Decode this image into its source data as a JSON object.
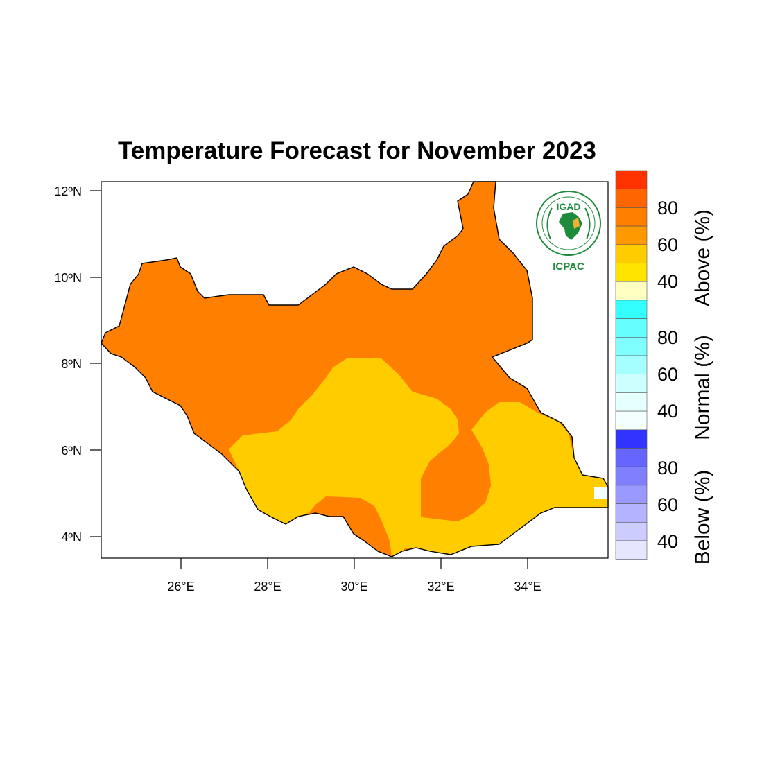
{
  "title": "Temperature Forecast for November 2023",
  "map": {
    "lat_ticks": [
      "12ºN",
      "10ºN",
      "8ºN",
      "6ºN",
      "4ºN"
    ],
    "lon_ticks": [
      "26°E",
      "28°E",
      "30°E",
      "32°E",
      "34°E"
    ],
    "zones": [
      {
        "category": "Above",
        "probability_band": "50-60",
        "color": "#FFCC00"
      },
      {
        "category": "Above",
        "probability_band": "60-70",
        "color": "#FF7F00"
      }
    ]
  },
  "legend": {
    "groups": [
      {
        "title": "Above (%)",
        "labels": [
          "80",
          "60",
          "40"
        ],
        "colors": [
          "#FF3300",
          "#FF6600",
          "#FF7F00",
          "#FF9900",
          "#FFCC00",
          "#FFE400",
          "#FFFFC2"
        ]
      },
      {
        "title": "Normal (%)",
        "labels": [
          "80",
          "60",
          "40"
        ],
        "colors": [
          "#33FFFF",
          "#66FFFF",
          "#80FFFF",
          "#A6FFFF",
          "#CCFFFF",
          "#E6FFFF",
          "#F4FFFF"
        ]
      },
      {
        "title": "Below (%)",
        "labels": [
          "80",
          "60",
          "40"
        ],
        "colors": [
          "#3333FF",
          "#6666FF",
          "#8080FF",
          "#9999FF",
          "#B3B3FF",
          "#CCCCFF",
          "#E6E6FF"
        ]
      }
    ]
  },
  "logo": {
    "top_text": "IGAD",
    "bottom_text": "ICPAC"
  }
}
